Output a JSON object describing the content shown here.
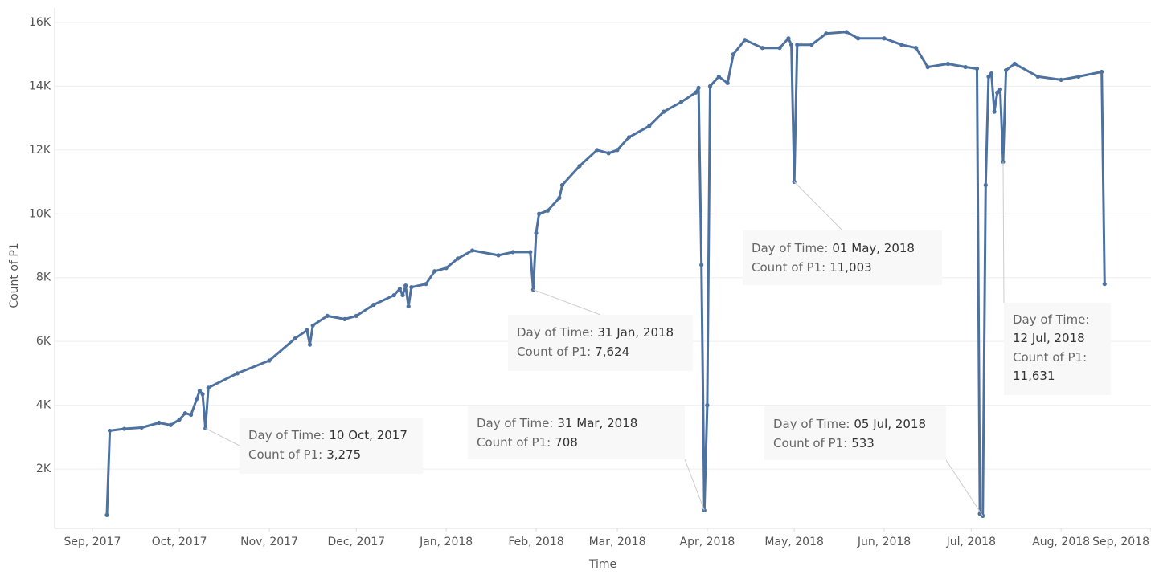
{
  "chart_data": {
    "type": "line",
    "y_label": "Count of P1",
    "x_label": "Time",
    "xlim": [
      "2017-08-19",
      "2018-09-01"
    ],
    "ylim": [
      140,
      16450
    ],
    "grid": true,
    "xticks": [
      {
        "value": "2017-09-01",
        "label": "Sep, 2017"
      },
      {
        "value": "2017-10-01",
        "label": "Oct, 2017"
      },
      {
        "value": "2017-11-01",
        "label": "Nov, 2017"
      },
      {
        "value": "2017-12-01",
        "label": "Dec, 2017"
      },
      {
        "value": "2018-01-01",
        "label": "Jan, 2018"
      },
      {
        "value": "2018-02-01",
        "label": "Feb, 2018"
      },
      {
        "value": "2018-03-01",
        "label": "Mar, 2018"
      },
      {
        "value": "2018-04-01",
        "label": "Apr, 2018"
      },
      {
        "value": "2018-05-01",
        "label": "May, 2018"
      },
      {
        "value": "2018-06-01",
        "label": "Jun, 2018"
      },
      {
        "value": "2018-07-01",
        "label": "Jul, 2018"
      },
      {
        "value": "2018-08-01",
        "label": "Aug, 2018"
      },
      {
        "value": "2018-09-01",
        "label": "Sep, 2018"
      }
    ],
    "yticks": [
      {
        "value": 2000,
        "label": "2K"
      },
      {
        "value": 4000,
        "label": "4K"
      },
      {
        "value": 6000,
        "label": "6K"
      },
      {
        "value": 8000,
        "label": "8K"
      },
      {
        "value": 10000,
        "label": "10K"
      },
      {
        "value": 12000,
        "label": "12K"
      },
      {
        "value": 14000,
        "label": "14K"
      },
      {
        "value": 16000,
        "label": "16K"
      }
    ],
    "x": [
      "2017-09-06",
      "2017-09-07",
      "2017-09-12",
      "2017-09-18",
      "2017-09-24",
      "2017-09-28",
      "2017-10-01",
      "2017-10-03",
      "2017-10-05",
      "2017-10-07",
      "2017-10-08",
      "2017-10-09",
      "2017-10-10",
      "2017-10-11",
      "2017-10-21",
      "2017-11-01",
      "2017-11-10",
      "2017-11-14",
      "2017-11-15",
      "2017-11-16",
      "2017-11-21",
      "2017-11-27",
      "2017-12-01",
      "2017-12-07",
      "2017-12-14",
      "2017-12-16",
      "2017-12-17",
      "2017-12-18",
      "2017-12-19",
      "2017-12-20",
      "2017-12-25",
      "2017-12-28",
      "2018-01-01",
      "2018-01-05",
      "2018-01-10",
      "2018-01-19",
      "2018-01-24",
      "2018-01-30",
      "2018-01-31",
      "2018-02-01",
      "2018-02-02",
      "2018-02-05",
      "2018-02-09",
      "2018-02-10",
      "2018-02-16",
      "2018-02-22",
      "2018-02-26",
      "2018-03-01",
      "2018-03-05",
      "2018-03-12",
      "2018-03-17",
      "2018-03-23",
      "2018-03-28",
      "2018-03-29",
      "2018-03-30",
      "2018-03-31",
      "2018-04-01",
      "2018-04-02",
      "2018-04-05",
      "2018-04-08",
      "2018-04-10",
      "2018-04-14",
      "2018-04-20",
      "2018-04-26",
      "2018-04-29",
      "2018-04-30",
      "2018-05-01",
      "2018-05-02",
      "2018-05-07",
      "2018-05-12",
      "2018-05-19",
      "2018-05-23",
      "2018-06-01",
      "2018-06-07",
      "2018-06-12",
      "2018-06-16",
      "2018-06-23",
      "2018-06-29",
      "2018-07-03",
      "2018-07-04",
      "2018-07-05",
      "2018-07-06",
      "2018-07-07",
      "2018-07-08",
      "2018-07-09",
      "2018-07-10",
      "2018-07-11",
      "2018-07-12",
      "2018-07-13",
      "2018-07-16",
      "2018-07-24",
      "2018-08-01",
      "2018-08-07",
      "2018-08-15",
      "2018-08-16"
    ],
    "series": [
      {
        "name": "Count of P1",
        "color": "#4e72a0",
        "values": [
          560,
          3200,
          3260,
          3300,
          3450,
          3380,
          3550,
          3750,
          3700,
          4200,
          4450,
          4350,
          3275,
          4550,
          5000,
          5400,
          6100,
          6350,
          5900,
          6500,
          6800,
          6700,
          6800,
          7150,
          7450,
          7650,
          7450,
          7750,
          7100,
          7700,
          7800,
          8200,
          8300,
          8600,
          8850,
          8700,
          8800,
          8800,
          7624,
          9400,
          10000,
          10100,
          10500,
          10900,
          11500,
          12000,
          11900,
          12000,
          12400,
          12750,
          13200,
          13500,
          13800,
          13950,
          8400,
          708,
          4000,
          14000,
          14300,
          14100,
          15000,
          15450,
          15200,
          15200,
          15500,
          15300,
          11003,
          15300,
          15300,
          15650,
          15700,
          15500,
          15500,
          15300,
          15200,
          14600,
          14700,
          14600,
          14550,
          600,
          533,
          10900,
          14300,
          14400,
          13200,
          13800,
          13900,
          11631,
          14500,
          14700,
          14300,
          14200,
          14300,
          14450,
          7800
        ]
      }
    ],
    "annotation_keys": [
      "Day of Time:",
      "Count of P1:"
    ],
    "annotations": [
      {
        "x": "2017-10-10",
        "value": 3275,
        "date_label": "10 Oct, 2017",
        "value_label": "3,275"
      },
      {
        "x": "2018-01-31",
        "value": 7624,
        "date_label": "31 Jan, 2018",
        "value_label": "7,624"
      },
      {
        "x": "2018-03-31",
        "value": 708,
        "date_label": "31 Mar, 2018",
        "value_label": "708"
      },
      {
        "x": "2018-05-01",
        "value": 11003,
        "date_label": "01 May, 2018",
        "value_label": "11,003"
      },
      {
        "x": "2018-07-05",
        "value": 533,
        "date_label": "05 Jul, 2018",
        "value_label": "533"
      },
      {
        "x": "2018-07-12",
        "value": 11631,
        "date_label": "12 Jul, 2018",
        "value_label": "11,631"
      }
    ]
  }
}
